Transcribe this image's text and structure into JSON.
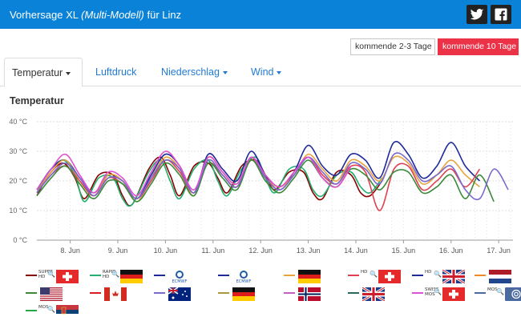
{
  "header": {
    "title_prefix": "Vorhersage XL",
    "title_model": "(Multi-Modell)",
    "title_suffix": "für Linz",
    "twitter_icon": "twitter-icon",
    "facebook_icon": "facebook-icon",
    "brand_color": "#0a82d8"
  },
  "range_buttons": [
    {
      "label": "kommende 2-3 Tage",
      "active": false
    },
    {
      "label": "kommende 10 Tage",
      "active": true,
      "color": "#ec3247"
    }
  ],
  "tabs": [
    {
      "label": "Temperatur",
      "active": true,
      "dropdown": true
    },
    {
      "label": "Luftdruck",
      "active": false,
      "dropdown": false
    },
    {
      "label": "Niederschlag",
      "active": false,
      "dropdown": true
    },
    {
      "label": "Wind",
      "active": false,
      "dropdown": true
    }
  ],
  "chart_title": "Temperatur",
  "legend": [
    {
      "color": "#8b0000",
      "tag": "SUPER\nHD",
      "flag": "ch"
    },
    {
      "color": "#20b070",
      "tag": "RAPID\nHD",
      "flag": "de"
    },
    {
      "color": "#1e2a9a",
      "tag": "",
      "flag": "ecmwf",
      "flag_label": "ECMWF"
    },
    {
      "color": "#1e2a9a",
      "tag": "",
      "flag": "ecmwf",
      "flag_label": "ECMWF"
    },
    {
      "color": "#e8a33a",
      "tag": "",
      "flag": "de"
    },
    {
      "color": "#e04050",
      "tag": "HD",
      "flag": "ch"
    },
    {
      "color": "#1e2a9a",
      "tag": "HD",
      "flag": "uk"
    },
    {
      "color": "#f08a20",
      "tag": "",
      "flag": "nl"
    },
    {
      "color": "#3a8a3a",
      "tag": "",
      "flag": "us"
    },
    {
      "color": "#d42020",
      "tag": "",
      "flag": "ca"
    },
    {
      "color": "#7a6acc",
      "tag": "",
      "flag": "au"
    },
    {
      "color": "#a89a3a",
      "tag": "",
      "flag": "de"
    },
    {
      "color": "#c060c0",
      "tag": "",
      "flag": "no"
    },
    {
      "color": "#2a6a5a",
      "tag": "",
      "flag": "uk"
    },
    {
      "color": "#e050d0",
      "tag": "SWISS\nMOS",
      "flag": "ch"
    },
    {
      "color": "#4a6aa0",
      "tag": "MOS",
      "flag": "swirl"
    },
    {
      "color": "#22aa44",
      "tag": "MOS",
      "flag": "rs"
    }
  ],
  "chart_data": {
    "type": "line",
    "title": "Temperatur",
    "ylabel": "",
    "ylim": [
      0,
      40
    ],
    "yticks": [
      "0 °C",
      "10 °C",
      "20 °C",
      "30 °C",
      "40 °C"
    ],
    "x_labels": [
      "8. Jun",
      "9. Jun",
      "10. Jun",
      "11. Jun",
      "12. Jun",
      "13. Jun",
      "14. Jun",
      "15. Jun",
      "16. Jun",
      "17. Jun"
    ],
    "x_range_days": [
      7.3,
      17.3
    ],
    "grid": "horizontal-and-vertical-dotted",
    "series": [
      {
        "color": "#8b0000",
        "x": [
          7.3,
          7.55,
          7.85,
          8.1,
          8.3,
          8.6,
          8.9,
          9.1,
          9.3,
          9.65,
          9.9,
          10.1,
          10.3,
          10.6,
          10.9,
          11.1,
          11.3,
          11.6,
          11.9,
          12.1,
          12.3,
          12.6,
          12.9,
          13.1,
          13.3,
          13.6,
          13.9,
          14.1,
          14.3,
          14.55
        ],
        "y": [
          15,
          22,
          26,
          21,
          14,
          22,
          22,
          15,
          12,
          24,
          28,
          22,
          15,
          25,
          26,
          21,
          16,
          25,
          27,
          22,
          17,
          23,
          23,
          16,
          14,
          23,
          22,
          16,
          15,
          20
        ]
      },
      {
        "color": "#20b070",
        "x": [
          7.3,
          7.55,
          7.85,
          8.1,
          8.3,
          8.6,
          8.9,
          9.1,
          9.3,
          9.65,
          9.9,
          10.1,
          10.3,
          10.6,
          10.9,
          11.1,
          11.3,
          11.6,
          11.9,
          12.1,
          12.3,
          12.6,
          12.9,
          13.1,
          13.3,
          13.6,
          13.9,
          14.1,
          14.3,
          14.55
        ],
        "y": [
          16,
          23,
          27,
          22,
          13,
          21,
          21,
          14,
          12,
          23,
          27,
          20,
          14,
          24,
          27,
          20,
          15,
          24,
          28,
          21,
          16,
          24,
          24,
          17,
          15,
          22,
          23,
          18,
          16,
          21
        ]
      },
      {
        "color": "#1e2a9a",
        "x": [
          7.3,
          7.6,
          7.9,
          8.2,
          8.5,
          8.8,
          9.1,
          9.4,
          9.7,
          10.0,
          10.3,
          10.6,
          10.9,
          11.2,
          11.5,
          11.8,
          12.1,
          12.4,
          12.7,
          13.0,
          13.3,
          13.6,
          13.9,
          14.2,
          14.5,
          14.8,
          15.1,
          15.4,
          15.7,
          16.0,
          16.3,
          16.6
        ],
        "y": [
          17,
          24,
          27,
          21,
          16,
          22,
          20,
          14,
          22,
          29,
          25,
          16,
          29,
          24,
          20,
          30,
          22,
          18,
          23,
          32,
          25,
          22,
          29,
          27,
          21,
          33,
          29,
          21,
          25,
          33,
          25,
          20
        ]
      },
      {
        "color": "#e8a33a",
        "x": [
          7.3,
          7.6,
          7.9,
          8.2,
          8.5,
          8.8,
          9.1,
          9.4,
          9.7,
          10.0,
          10.3,
          10.6,
          10.9,
          11.2,
          11.5,
          11.8,
          12.1,
          12.4,
          12.7,
          13.0,
          13.3,
          13.6,
          13.9,
          14.2,
          14.5,
          14.8,
          15.1,
          15.4,
          15.7,
          16.0,
          16.3,
          16.6
        ],
        "y": [
          16,
          23,
          27,
          20,
          15,
          22,
          20,
          13,
          21,
          28,
          24,
          15,
          28,
          23,
          19,
          28,
          21,
          18,
          22,
          29,
          24,
          20,
          27,
          25,
          20,
          28,
          26,
          19,
          22,
          27,
          22,
          18
        ]
      },
      {
        "color": "#e04050",
        "x": [
          7.3,
          7.6,
          7.9,
          8.2,
          8.5,
          8.8,
          9.1,
          9.4,
          9.7,
          10.0,
          10.3,
          10.6,
          10.9,
          11.2,
          11.5,
          11.8,
          12.1,
          12.4,
          12.7,
          13.0,
          13.3,
          13.6,
          13.9,
          14.2,
          14.5,
          14.8,
          15.1,
          15.4,
          15.7,
          16.0,
          16.3,
          16.6
        ],
        "y": [
          16,
          22,
          25,
          20,
          15,
          21,
          19,
          14,
          20,
          27,
          23,
          16,
          26,
          22,
          18,
          27,
          21,
          17,
          22,
          28,
          22,
          19,
          25,
          23,
          10,
          24,
          25,
          17,
          20,
          24,
          18,
          24
        ]
      },
      {
        "color": "#3a8a3a",
        "x": [
          7.3,
          7.6,
          7.9,
          8.2,
          8.5,
          8.8,
          9.1,
          9.4,
          9.7,
          10.0,
          10.3,
          10.6,
          10.9,
          11.2,
          11.5,
          11.8,
          12.1,
          12.4,
          12.7,
          13.0,
          13.3,
          13.6,
          13.9,
          14.2,
          14.5,
          14.8,
          15.1,
          15.4,
          15.7,
          16.0,
          16.3,
          16.6,
          16.9
        ],
        "y": [
          15,
          21,
          25,
          19,
          14,
          20,
          19,
          13,
          19,
          26,
          22,
          15,
          26,
          21,
          17,
          27,
          20,
          16,
          21,
          27,
          21,
          18,
          24,
          22,
          17,
          23,
          23,
          16,
          18,
          22,
          14,
          22,
          13
        ]
      },
      {
        "color": "#7a6acc",
        "x": [
          7.3,
          7.6,
          7.9,
          8.2,
          8.5,
          8.8,
          9.1,
          9.4,
          9.7,
          10.0,
          10.3,
          10.6,
          10.9,
          11.2,
          11.5,
          11.8,
          12.1,
          12.4,
          12.7,
          13.0,
          13.3,
          13.6,
          13.9,
          14.2,
          14.5,
          14.8,
          15.1,
          15.4,
          15.7,
          16.0,
          16.3,
          16.6,
          16.9,
          17.2
        ],
        "y": [
          16,
          22,
          26,
          21,
          15,
          21,
          20,
          14,
          21,
          27,
          24,
          16,
          27,
          22,
          18,
          28,
          21,
          17,
          22,
          28,
          23,
          19,
          26,
          24,
          19,
          29,
          27,
          20,
          22,
          25,
          17,
          14,
          24,
          17
        ]
      },
      {
        "color": "#e050d0",
        "x": [
          7.3,
          7.6,
          7.9,
          8.2,
          8.5,
          8.8,
          9.1,
          9.4,
          9.7,
          10.0,
          10.3,
          10.6,
          10.9,
          11.2,
          11.5,
          11.8,
          12.1,
          12.4,
          12.7,
          13.0,
          13.3,
          13.6,
          13.9
        ],
        "y": [
          17,
          24,
          29,
          22,
          16,
          23,
          21,
          15,
          23,
          30,
          25,
          17,
          28,
          23,
          19,
          28,
          22,
          18,
          23,
          28,
          21,
          18,
          25
        ]
      }
    ]
  }
}
